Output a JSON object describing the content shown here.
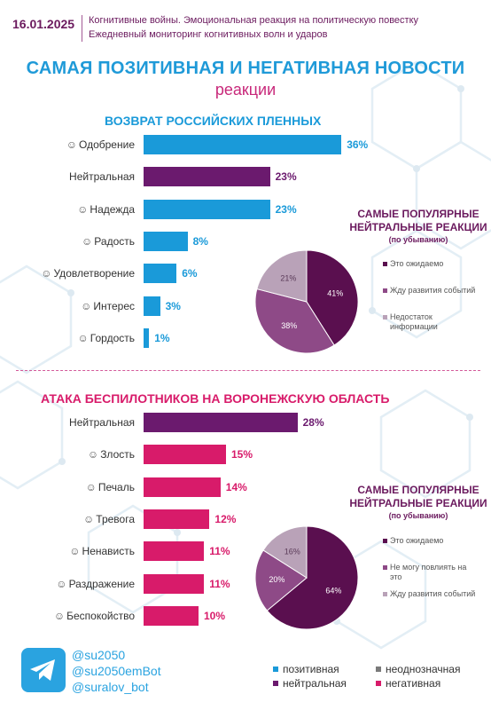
{
  "header": {
    "date": "16.01.2025",
    "line1": "Когнитивные войны. Эмоциональная реакция на политическую повестку",
    "line2": "Ежедневный мониторинг когнитивных волн и ударов"
  },
  "title": {
    "main": "САМАЯ ПОЗИТИВНАЯ И НЕГАТИВНАЯ НОВОСТИ",
    "sub": "реакции"
  },
  "colors": {
    "positive": "#1a9ad9",
    "neutral": "#6b1a6e",
    "negative": "#d81b6a",
    "ambiguous": "#7a7a7a",
    "pie_dark": "#5a0f4f",
    "pie_mid": "#8e4a87",
    "pie_light": "#b9a2b8"
  },
  "chart_data": [
    {
      "type": "bar",
      "title": "ВОЗВРАТ РОССИЙСКИХ ПЛЕННЫХ",
      "categories": [
        "Одобрение",
        "Нейтральная",
        "Надежда",
        "Радость",
        "Удовлетворение",
        "Интерес",
        "Гордость"
      ],
      "values": [
        36,
        23,
        23,
        8,
        6,
        3,
        1
      ],
      "value_labels": [
        "36%",
        "23%",
        "23%",
        "8%",
        "6%",
        "3%",
        "1%"
      ],
      "kinds": [
        "positive",
        "neutral",
        "positive",
        "positive",
        "positive",
        "positive",
        "positive"
      ],
      "icons": [
        "approval-icon",
        "",
        "hope-icon",
        "joy-icon",
        "satisfaction-icon",
        "interest-icon",
        "pride-icon"
      ]
    },
    {
      "type": "pie",
      "title": "САМЫЕ ПОПУЛЯРНЫЕ НЕЙТРАЛЬНЫЕ РЕАКЦИИ",
      "note": "(по убыванию)",
      "labels": [
        "Это ожидаемо",
        "Жду развития событий",
        "Недостаток информации"
      ],
      "values": [
        41,
        38,
        21
      ],
      "value_labels": [
        "41%",
        "38%",
        "21%"
      ]
    },
    {
      "type": "bar",
      "title": "АТАКА БЕСПИЛОТНИКОВ НА ВОРОНЕЖСКУЮ ОБЛАСТЬ",
      "categories": [
        "Нейтральная",
        "Злость",
        "Печаль",
        "Тревога",
        "Ненависть",
        "Раздражение",
        "Беспокойство"
      ],
      "values": [
        28,
        15,
        14,
        12,
        11,
        11,
        10
      ],
      "value_labels": [
        "28%",
        "15%",
        "14%",
        "12%",
        "11%",
        "11%",
        "10%"
      ],
      "kinds": [
        "neutral",
        "negative",
        "negative",
        "negative",
        "negative",
        "negative",
        "negative"
      ],
      "icons": [
        "",
        "anger-icon",
        "sadness-icon",
        "anxiety-icon",
        "hatred-icon",
        "irritation-icon",
        "worry-icon"
      ]
    },
    {
      "type": "pie",
      "title": "САМЫЕ ПОПУЛЯРНЫЕ НЕЙТРАЛЬНЫЕ РЕАКЦИИ",
      "note": "(по убыванию)",
      "labels": [
        "Это ожидаемо",
        "Не могу повлиять на это",
        "Жду развития событий"
      ],
      "values": [
        64,
        20,
        16
      ],
      "value_labels": [
        "64%",
        "20%",
        "16%"
      ]
    }
  ],
  "footer": {
    "socials": [
      "@su2050",
      "@su2050emBot",
      "@suralov_bot"
    ],
    "legend": [
      {
        "label": "позитивная",
        "kind": "positive"
      },
      {
        "label": "неоднозначная",
        "kind": "ambiguous"
      },
      {
        "label": "нейтральная",
        "kind": "neutral"
      },
      {
        "label": "негативная",
        "kind": "negative"
      }
    ]
  }
}
